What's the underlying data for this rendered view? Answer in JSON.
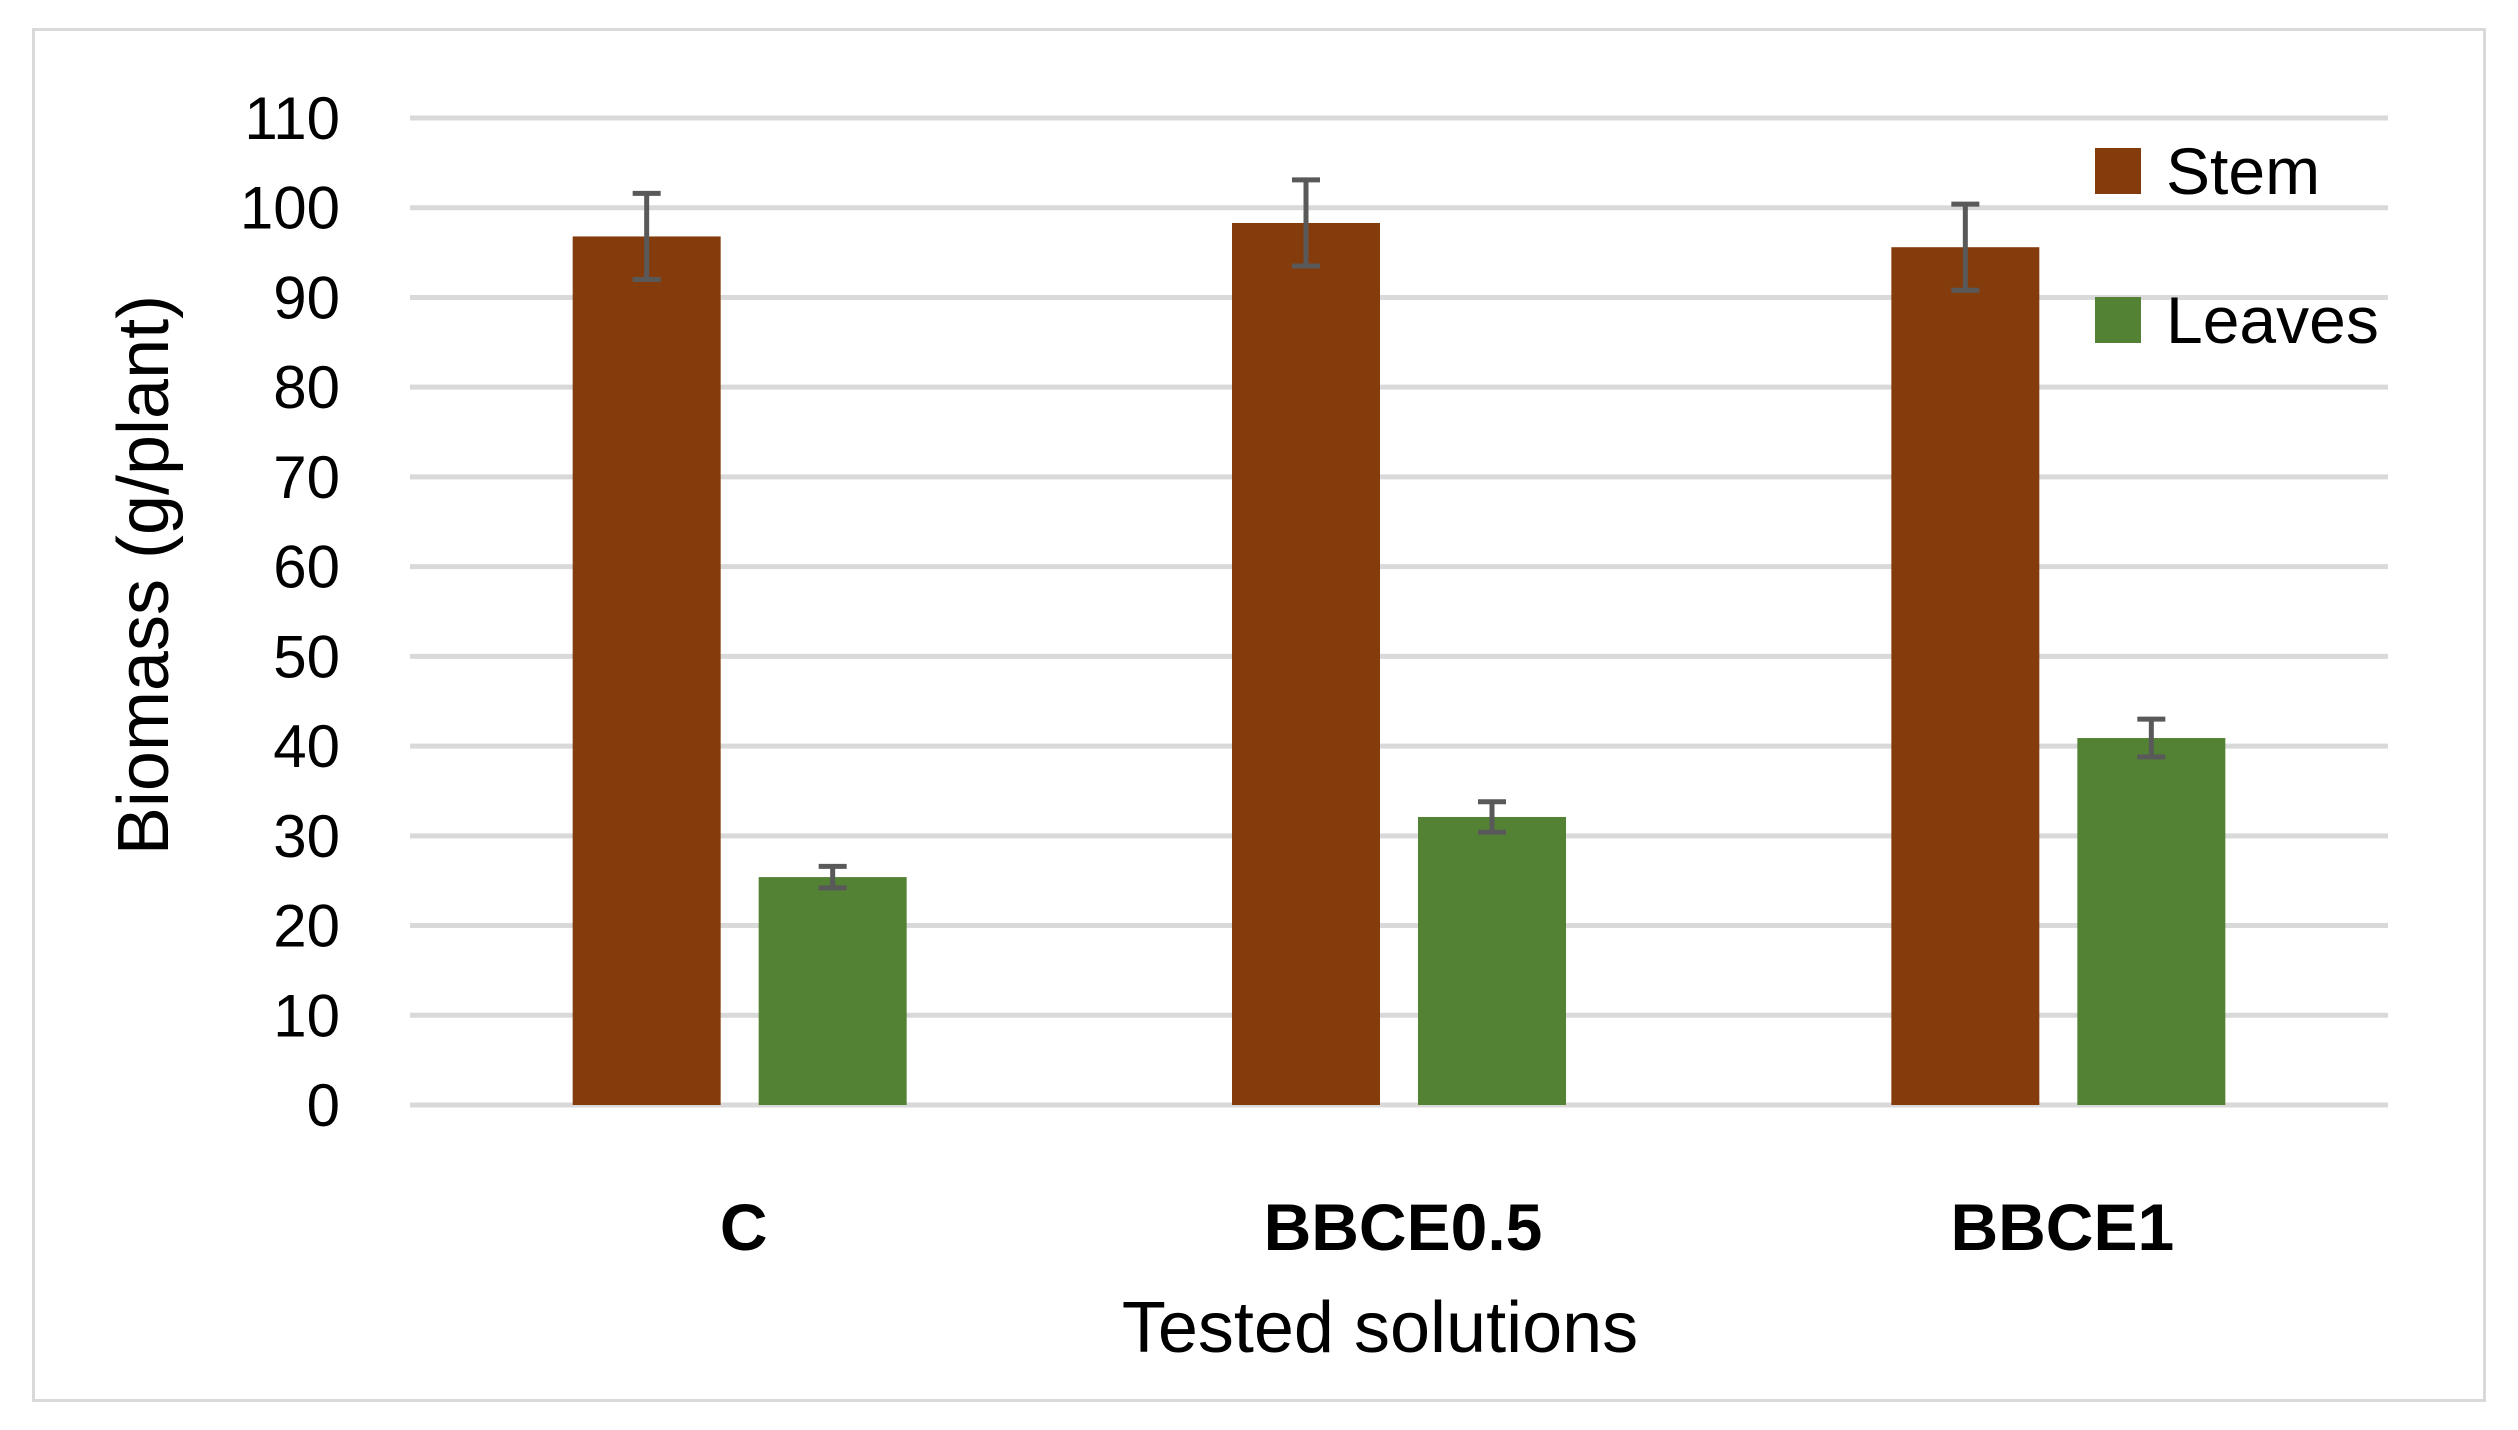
{
  "chart_data": {
    "type": "bar",
    "title": "",
    "xlabel": "Tested solutions",
    "ylabel": "Biomass (g/plant)",
    "categories": [
      "C",
      "BBCE0.5",
      "BBCE1"
    ],
    "ylim": [
      0,
      110
    ],
    "yticks": [
      0,
      10,
      20,
      30,
      40,
      50,
      60,
      70,
      80,
      90,
      100,
      110
    ],
    "grid": true,
    "legend_position": "top-right",
    "series": [
      {
        "name": "Stem",
        "color": "#843c0c",
        "values": [
          96.8,
          98.3,
          95.6
        ],
        "errors": [
          4.8,
          4.8,
          4.8
        ]
      },
      {
        "name": "Leaves",
        "color": "#548235",
        "values": [
          25.4,
          32.1,
          40.9
        ],
        "errors": [
          1.2,
          1.7,
          2.1
        ]
      }
    ],
    "error_bar_color": "#595959",
    "grid_color": "#d9d9d9"
  }
}
